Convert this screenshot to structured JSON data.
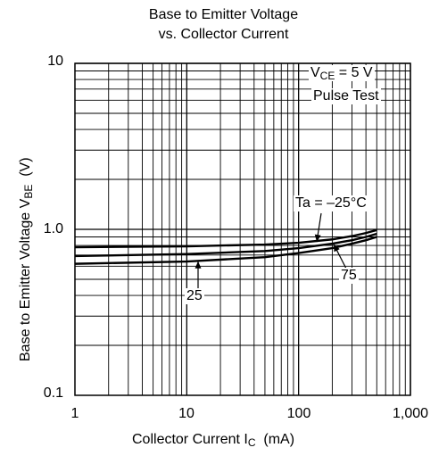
{
  "chart_data": {
    "type": "line",
    "title_line1": "Base to Emitter Voltage",
    "title_line2": "vs. Collector Current",
    "xlabel_main": "Collector Current  I",
    "xlabel_sub": "C",
    "xlabel_unit": "  (mA)",
    "ylabel_main": "Base to Emitter Voltage  V",
    "ylabel_sub": "BE",
    "ylabel_unit": "  (V)",
    "x_scale": "log",
    "y_scale": "log",
    "xlim": [
      1,
      1000
    ],
    "ylim": [
      0.1,
      10
    ],
    "x_ticks": [
      "1",
      "10",
      "100",
      "1,000"
    ],
    "y_ticks": [
      "10",
      "1.0",
      "0.1"
    ],
    "grid": true,
    "conditions": {
      "vce_main": "V",
      "vce_sub": "CE",
      "vce_rest": " = 5 V",
      "pulse": "Pulse Test"
    },
    "series": [
      {
        "name": "Ta = –25°C",
        "x": [
          1,
          10,
          50,
          100,
          200,
          300,
          400,
          500
        ],
        "y": [
          0.78,
          0.79,
          0.81,
          0.83,
          0.87,
          0.91,
          0.95,
          0.99
        ]
      },
      {
        "name": "75",
        "x": [
          1,
          10,
          50,
          100,
          200,
          300,
          400,
          500
        ],
        "y": [
          0.69,
          0.71,
          0.74,
          0.77,
          0.82,
          0.86,
          0.9,
          0.94
        ]
      },
      {
        "name": "25",
        "x": [
          1,
          10,
          50,
          100,
          200,
          300,
          400,
          500
        ],
        "y": [
          0.62,
          0.64,
          0.68,
          0.72,
          0.77,
          0.82,
          0.86,
          0.9
        ]
      }
    ],
    "annotations": {
      "ta_label": "Ta = –25°C",
      "label_75": "75",
      "label_25": "25"
    }
  }
}
